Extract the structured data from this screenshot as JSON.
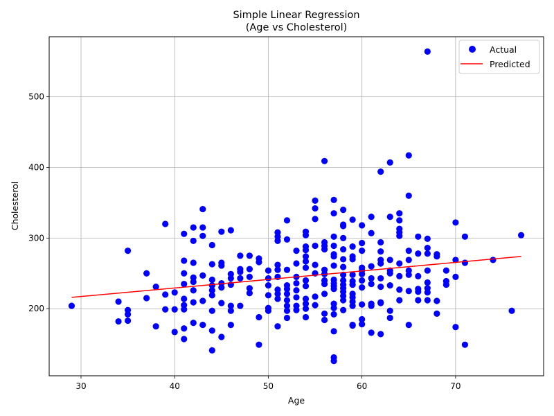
{
  "chart_data": {
    "type": "scatter",
    "title": "Simple Linear Regression",
    "subtitle": "(Age vs Cholesterol)",
    "xlabel": "Age",
    "ylabel": "Cholesterol",
    "xlim": [
      26.6,
      79.4
    ],
    "ylim": [
      105,
      585
    ],
    "xticks": [
      30,
      40,
      50,
      60,
      70
    ],
    "yticks": [
      200,
      300,
      400,
      500
    ],
    "grid": true,
    "legend": {
      "position": "upper-right",
      "entries": [
        "Actual",
        "Predicted"
      ]
    },
    "colors": {
      "actual": "#0000ff",
      "predicted": "#ff0000"
    },
    "series": [
      {
        "name": "Actual",
        "type": "scatter",
        "points": [
          [
            29,
            204
          ],
          [
            34,
            182
          ],
          [
            34,
            210
          ],
          [
            35,
            282
          ],
          [
            35,
            198
          ],
          [
            35,
            192
          ],
          [
            35,
            183
          ],
          [
            37,
            250
          ],
          [
            37,
            215
          ],
          [
            38,
            231
          ],
          [
            38,
            175
          ],
          [
            39,
            320
          ],
          [
            39,
            220
          ],
          [
            39,
            199
          ],
          [
            40,
            223
          ],
          [
            40,
            199
          ],
          [
            40,
            167
          ],
          [
            41,
            306
          ],
          [
            41,
            268
          ],
          [
            41,
            250
          ],
          [
            41,
            235
          ],
          [
            41,
            214
          ],
          [
            41,
            205
          ],
          [
            41,
            199
          ],
          [
            41,
            172
          ],
          [
            41,
            157
          ],
          [
            42,
            315
          ],
          [
            42,
            296
          ],
          [
            42,
            265
          ],
          [
            42,
            244
          ],
          [
            42,
            238
          ],
          [
            42,
            226
          ],
          [
            42,
            209
          ],
          [
            42,
            180
          ],
          [
            43,
            341
          ],
          [
            43,
            315
          ],
          [
            43,
            303
          ],
          [
            43,
            247
          ],
          [
            43,
            211
          ],
          [
            43,
            177
          ],
          [
            44,
            290
          ],
          [
            44,
            263
          ],
          [
            44,
            241
          ],
          [
            44,
            233
          ],
          [
            44,
            226
          ],
          [
            44,
            219
          ],
          [
            44,
            197
          ],
          [
            44,
            169
          ],
          [
            44,
            141
          ],
          [
            45,
            309
          ],
          [
            45,
            265
          ],
          [
            45,
            261
          ],
          [
            45,
            236
          ],
          [
            45,
            230
          ],
          [
            45,
            208
          ],
          [
            45,
            160
          ],
          [
            46,
            311
          ],
          [
            46,
            249
          ],
          [
            46,
            243
          ],
          [
            46,
            234
          ],
          [
            46,
            204
          ],
          [
            46,
            197
          ],
          [
            46,
            177
          ],
          [
            47,
            275
          ],
          [
            47,
            256
          ],
          [
            47,
            252
          ],
          [
            47,
            243
          ],
          [
            47,
            204
          ],
          [
            48,
            275
          ],
          [
            48,
            256
          ],
          [
            48,
            245
          ],
          [
            48,
            229
          ],
          [
            48,
            222
          ],
          [
            49,
            271
          ],
          [
            49,
            266
          ],
          [
            49,
            188
          ],
          [
            49,
            149
          ],
          [
            50,
            254
          ],
          [
            50,
            243
          ],
          [
            50,
            233
          ],
          [
            50,
            219
          ],
          [
            50,
            201
          ],
          [
            50,
            197
          ],
          [
            51,
            308
          ],
          [
            51,
            302
          ],
          [
            51,
            296
          ],
          [
            51,
            262
          ],
          [
            51,
            255
          ],
          [
            51,
            245
          ],
          [
            51,
            227
          ],
          [
            51,
            221
          ],
          [
            51,
            214
          ],
          [
            51,
            175
          ],
          [
            52,
            325
          ],
          [
            52,
            298
          ],
          [
            52,
            255
          ],
          [
            52,
            233
          ],
          [
            52,
            228
          ],
          [
            52,
            221
          ],
          [
            52,
            212
          ],
          [
            52,
            204
          ],
          [
            52,
            197
          ],
          [
            52,
            187
          ],
          [
            53,
            282
          ],
          [
            53,
            264
          ],
          [
            53,
            245
          ],
          [
            53,
            236
          ],
          [
            53,
            226
          ],
          [
            53,
            216
          ],
          [
            53,
            204
          ],
          [
            53,
            198
          ],
          [
            54,
            309
          ],
          [
            54,
            304
          ],
          [
            54,
            288
          ],
          [
            54,
            283
          ],
          [
            54,
            274
          ],
          [
            54,
            267
          ],
          [
            54,
            258
          ],
          [
            54,
            240
          ],
          [
            54,
            232
          ],
          [
            54,
            214
          ],
          [
            54,
            207
          ],
          [
            54,
            200
          ],
          [
            54,
            188
          ],
          [
            55,
            353
          ],
          [
            55,
            342
          ],
          [
            55,
            327
          ],
          [
            55,
            289
          ],
          [
            55,
            262
          ],
          [
            55,
            250
          ],
          [
            55,
            217
          ],
          [
            55,
            205
          ],
          [
            56,
            409
          ],
          [
            56,
            294
          ],
          [
            56,
            289
          ],
          [
            56,
            284
          ],
          [
            56,
            255
          ],
          [
            56,
            249
          ],
          [
            56,
            240
          ],
          [
            56,
            235
          ],
          [
            56,
            221
          ],
          [
            56,
            193
          ],
          [
            56,
            184
          ],
          [
            57,
            354
          ],
          [
            57,
            335
          ],
          [
            57,
            302
          ],
          [
            57,
            289
          ],
          [
            57,
            277
          ],
          [
            57,
            274
          ],
          [
            57,
            261
          ],
          [
            57,
            241
          ],
          [
            57,
            236
          ],
          [
            57,
            232
          ],
          [
            57,
            228
          ],
          [
            57,
            207
          ],
          [
            57,
            201
          ],
          [
            57,
            192
          ],
          [
            57,
            168
          ],
          [
            57,
            131
          ],
          [
            57,
            126
          ],
          [
            58,
            340
          ],
          [
            58,
            319
          ],
          [
            58,
            317
          ],
          [
            58,
            300
          ],
          [
            58,
            284
          ],
          [
            58,
            270
          ],
          [
            58,
            259
          ],
          [
            58,
            248
          ],
          [
            58,
            240
          ],
          [
            58,
            234
          ],
          [
            58,
            229
          ],
          [
            58,
            224
          ],
          [
            58,
            218
          ],
          [
            58,
            212
          ],
          [
            58,
            198
          ],
          [
            59,
            326
          ],
          [
            59,
            288
          ],
          [
            59,
            274
          ],
          [
            59,
            270
          ],
          [
            59,
            248
          ],
          [
            59,
            239
          ],
          [
            59,
            234
          ],
          [
            59,
            221
          ],
          [
            59,
            216
          ],
          [
            59,
            210
          ],
          [
            59,
            204
          ],
          [
            59,
            177
          ],
          [
            59,
            176
          ],
          [
            60,
            318
          ],
          [
            60,
            293
          ],
          [
            60,
            282
          ],
          [
            60,
            258
          ],
          [
            60,
            254
          ],
          [
            60,
            249
          ],
          [
            60,
            240
          ],
          [
            60,
            230
          ],
          [
            60,
            206
          ],
          [
            60,
            185
          ],
          [
            60,
            178
          ],
          [
            61,
            330
          ],
          [
            61,
            307
          ],
          [
            61,
            260
          ],
          [
            61,
            243
          ],
          [
            61,
            235
          ],
          [
            61,
            207
          ],
          [
            61,
            204
          ],
          [
            61,
            166
          ],
          [
            62,
            394
          ],
          [
            62,
            294
          ],
          [
            62,
            281
          ],
          [
            62,
            269
          ],
          [
            62,
            264
          ],
          [
            62,
            243
          ],
          [
            62,
            231
          ],
          [
            62,
            209
          ],
          [
            62,
            208
          ],
          [
            62,
            164
          ],
          [
            63,
            407
          ],
          [
            63,
            330
          ],
          [
            63,
            269
          ],
          [
            63,
            254
          ],
          [
            63,
            250
          ],
          [
            63,
            233
          ],
          [
            63,
            197
          ],
          [
            63,
            187
          ],
          [
            64,
            335
          ],
          [
            64,
            325
          ],
          [
            64,
            313
          ],
          [
            64,
            308
          ],
          [
            64,
            303
          ],
          [
            64,
            264
          ],
          [
            64,
            246
          ],
          [
            64,
            227
          ],
          [
            64,
            212
          ],
          [
            65,
            417
          ],
          [
            65,
            360
          ],
          [
            65,
            282
          ],
          [
            65,
            269
          ],
          [
            65,
            254
          ],
          [
            65,
            248
          ],
          [
            65,
            225
          ],
          [
            65,
            177
          ],
          [
            66,
            302
          ],
          [
            66,
            278
          ],
          [
            66,
            246
          ],
          [
            66,
            228
          ],
          [
            66,
            224
          ],
          [
            66,
            212
          ],
          [
            67,
            564
          ],
          [
            67,
            299
          ],
          [
            67,
            286
          ],
          [
            67,
            278
          ],
          [
            67,
            254
          ],
          [
            67,
            237
          ],
          [
            67,
            229
          ],
          [
            67,
            223
          ],
          [
            67,
            212
          ],
          [
            68,
            277
          ],
          [
            68,
            274
          ],
          [
            68,
            211
          ],
          [
            68,
            193
          ],
          [
            69,
            254
          ],
          [
            69,
            239
          ],
          [
            69,
            234
          ],
          [
            70,
            322
          ],
          [
            70,
            269
          ],
          [
            70,
            245
          ],
          [
            70,
            174
          ],
          [
            71,
            302
          ],
          [
            71,
            265
          ],
          [
            71,
            149
          ],
          [
            74,
            269
          ],
          [
            76,
            197
          ],
          [
            77,
            304
          ]
        ]
      },
      {
        "name": "Predicted",
        "type": "line",
        "points": [
          [
            29,
            216
          ],
          [
            77,
            274
          ]
        ]
      }
    ]
  }
}
